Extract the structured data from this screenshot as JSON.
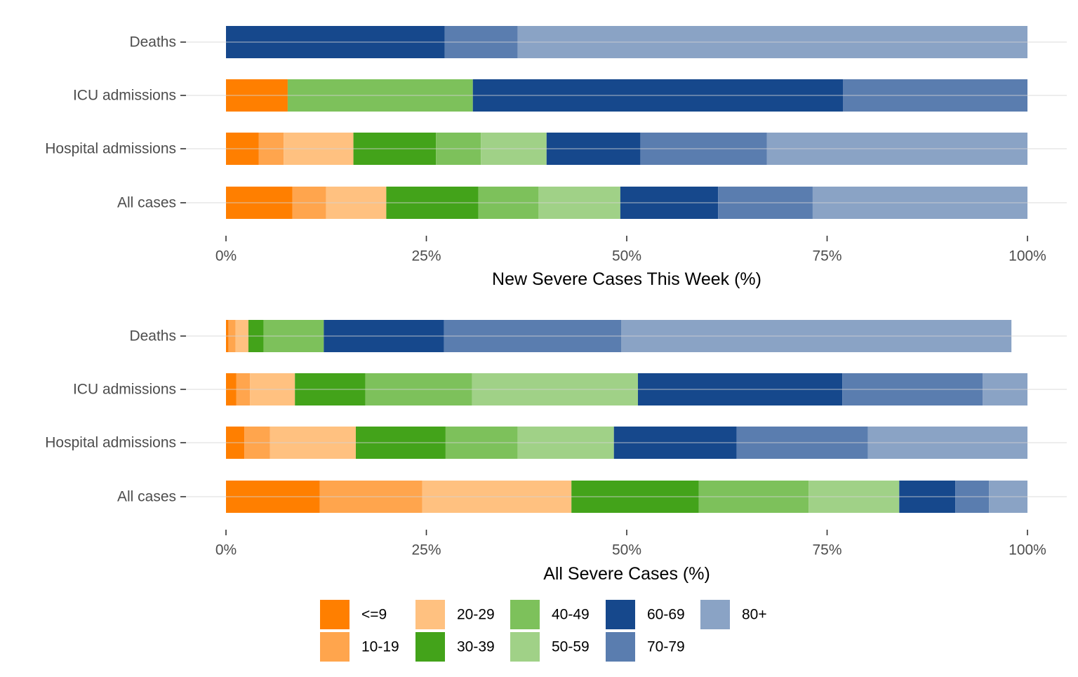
{
  "chart_data": {
    "type": "bar",
    "orientation": "horizontal",
    "stacked": true,
    "legend": {
      "position": "bottom",
      "items": [
        {
          "label": "<=9",
          "color": "#FF7F00"
        },
        {
          "label": "10-19",
          "color": "#FFA54D"
        },
        {
          "label": "20-29",
          "color": "#FFC180"
        },
        {
          "label": "30-39",
          "color": "#43A31A"
        },
        {
          "label": "40-49",
          "color": "#7DC15B"
        },
        {
          "label": "50-59",
          "color": "#A0D187"
        },
        {
          "label": "60-69",
          "color": "#16488C"
        },
        {
          "label": "70-79",
          "color": "#5A7DAF"
        },
        {
          "label": "80+",
          "color": "#8AA3C5"
        }
      ]
    },
    "panels": [
      {
        "xlabel": "New Severe Cases This Week (%)",
        "xlim": [
          0,
          100
        ],
        "xticks": [
          "0%",
          "25%",
          "50%",
          "75%",
          "100%"
        ],
        "grid": true,
        "categories": [
          "Deaths",
          "ICU admissions",
          "Hospital admissions",
          "All cases"
        ],
        "values": [
          [
            0,
            0,
            0,
            0,
            0,
            0,
            27.3,
            9.1,
            63.6
          ],
          [
            7.7,
            0,
            0,
            0,
            23.1,
            0,
            46.2,
            23.0,
            0
          ],
          [
            4.1,
            3.1,
            8.7,
            10.3,
            5.6,
            8.2,
            11.7,
            15.8,
            32.5
          ],
          [
            8.3,
            4.2,
            7.5,
            11.5,
            7.5,
            10.2,
            12.2,
            11.8,
            26.8
          ]
        ]
      },
      {
        "xlabel": "All Severe Cases (%)",
        "xlim": [
          0,
          100
        ],
        "xticks": [
          "0%",
          "25%",
          "50%",
          "75%",
          "100%"
        ],
        "grid": true,
        "categories": [
          "Deaths",
          "ICU admissions",
          "Hospital admissions",
          "All cases"
        ],
        "values": [
          [
            0.3,
            0.9,
            1.6,
            1.9,
            7.5,
            0,
            15.0,
            22.1,
            48.7
          ],
          [
            1.3,
            1.7,
            5.6,
            8.8,
            13.3,
            20.7,
            25.5,
            17.5,
            5.6
          ],
          [
            2.3,
            3.2,
            10.7,
            11.2,
            9.0,
            12.0,
            15.3,
            16.4,
            19.9
          ],
          [
            11.7,
            12.8,
            18.6,
            15.9,
            13.7,
            11.3,
            7.0,
            4.2,
            4.8
          ]
        ]
      }
    ]
  }
}
